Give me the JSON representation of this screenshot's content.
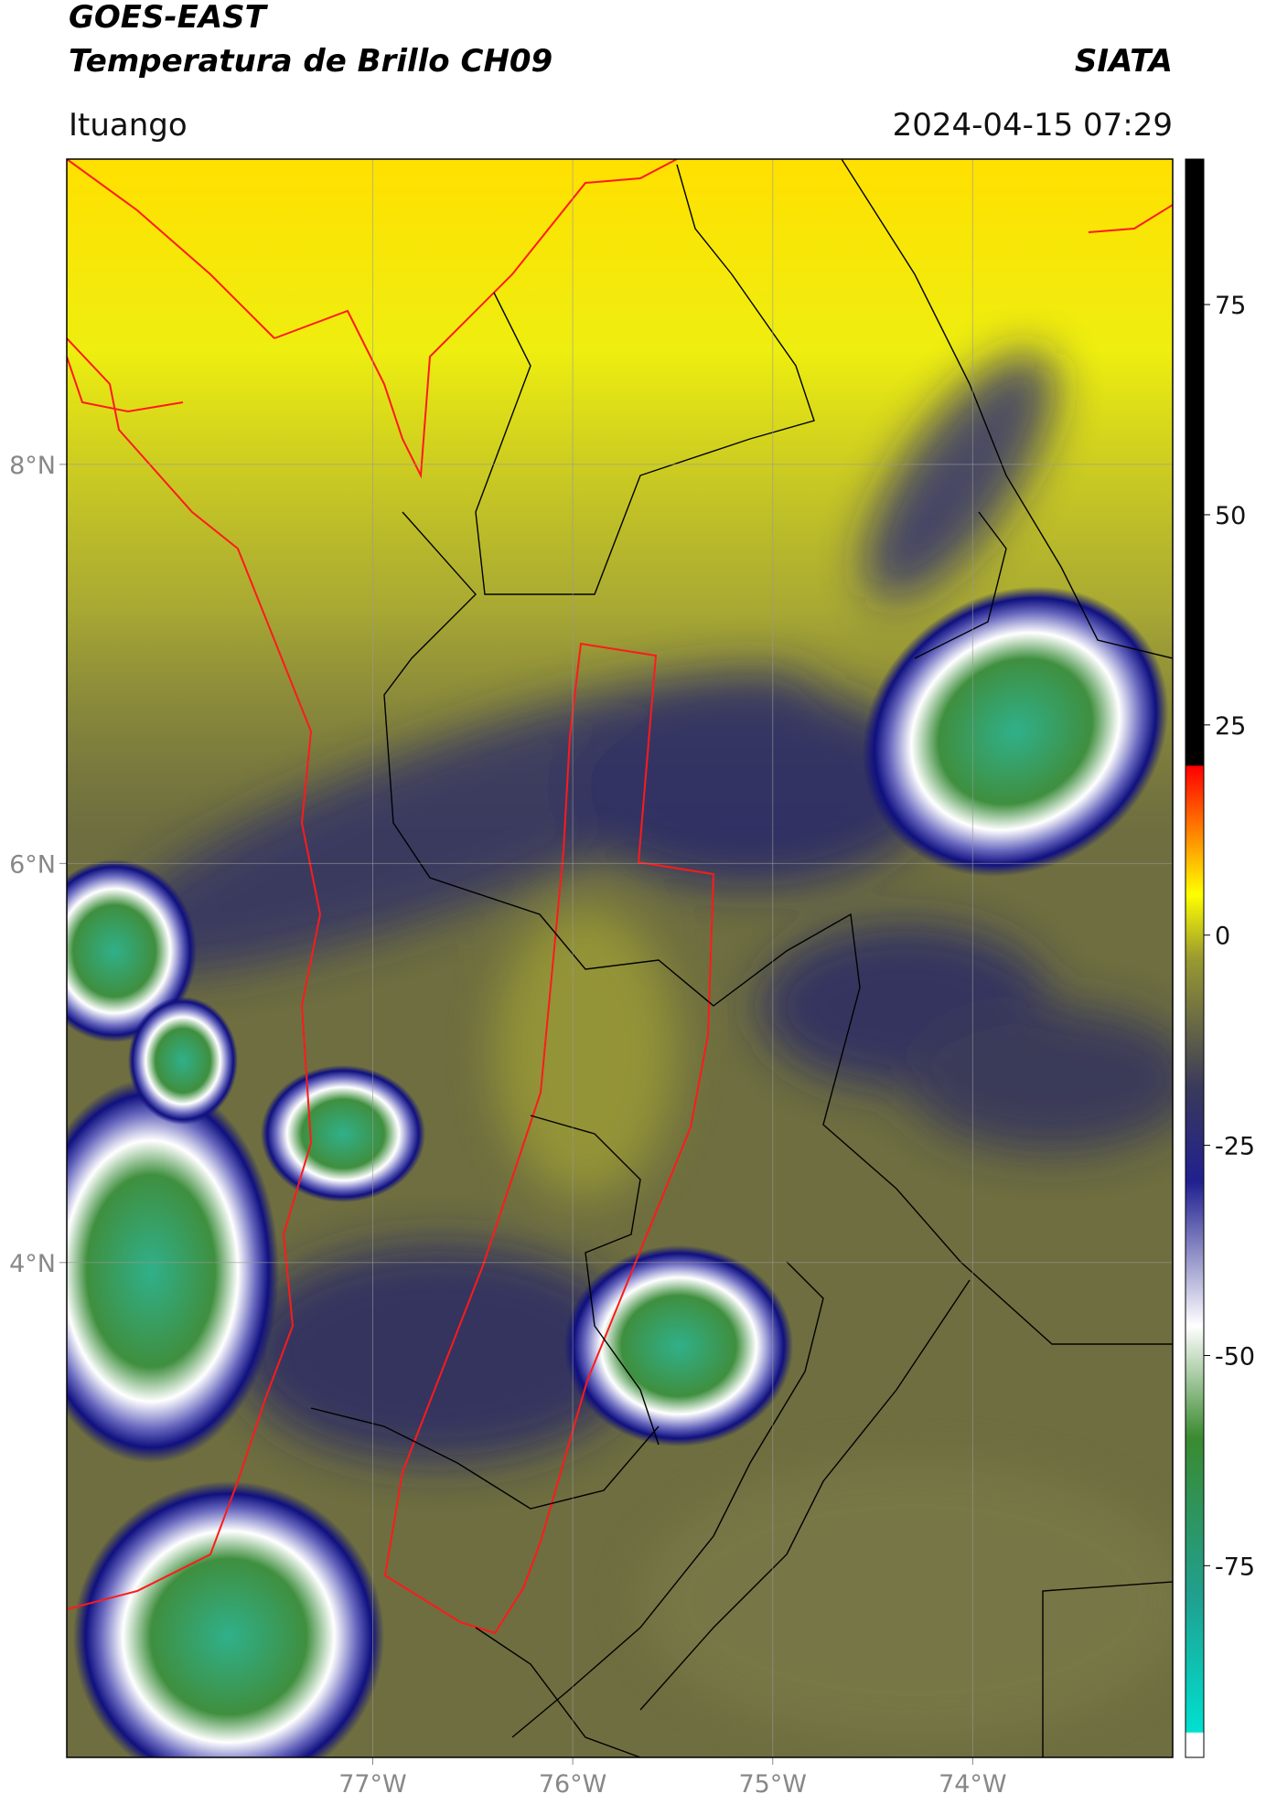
{
  "chart_data": {
    "type": "map",
    "title": "GOES-EAST",
    "subtitle": "Temperatura de Brillo CH09",
    "source": "SIATA",
    "location": "Ituango",
    "datetime": "2024-04-15 07:29",
    "xlim": [
      -78.53,
      -73.0
    ],
    "ylim": [
      1.52,
      9.53
    ],
    "xticks": [
      {
        "value": -77,
        "label": "77°W"
      },
      {
        "value": -76,
        "label": "76°W"
      },
      {
        "value": -75,
        "label": "75°W"
      },
      {
        "value": -74,
        "label": "74°W"
      }
    ],
    "yticks": [
      {
        "value": 4,
        "label": "4°N"
      },
      {
        "value": 6,
        "label": "6°N"
      },
      {
        "value": 8,
        "label": "8°N"
      }
    ],
    "grid": true,
    "colorbar": {
      "lim": [
        -97.8,
        92.3
      ],
      "ticks": [
        75,
        50,
        25,
        0,
        -25,
        -50,
        -75
      ]
    }
  }
}
